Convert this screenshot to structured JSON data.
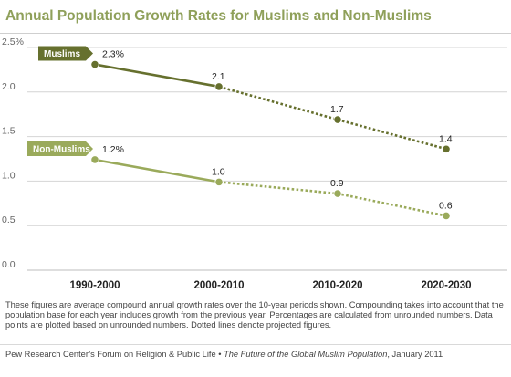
{
  "title": "Annual Population Growth Rates for Muslims and Non-Muslims",
  "colors": {
    "muslims": "#66702e",
    "non_muslims": "#9aaa5b",
    "title": "#8fa05a",
    "grid": "#d4d4d4"
  },
  "chart_data": {
    "type": "line",
    "categories": [
      "1990-2000",
      "2000-2010",
      "2010-2020",
      "2020-2030"
    ],
    "ylim": [
      0,
      2.5
    ],
    "yticks": [
      "0.0",
      "0.5",
      "1.0",
      "1.5",
      "2.0",
      "2.5%"
    ],
    "ytick_values": [
      0,
      0.5,
      1.0,
      1.5,
      2.0,
      2.5
    ],
    "grid": true,
    "projected_from_index": 1,
    "series": [
      {
        "name": "Muslims",
        "values": [
          2.31,
          2.06,
          1.69,
          1.36
        ],
        "labels": [
          "2.3%",
          "2.1",
          "1.7",
          "1.4"
        ],
        "color": "#66702e"
      },
      {
        "name": "Non-Muslims",
        "values": [
          1.24,
          0.99,
          0.86,
          0.61
        ],
        "labels": [
          "1.2%",
          "1.0",
          "0.9",
          "0.6"
        ],
        "color": "#9aaa5b"
      }
    ]
  },
  "footnote": "These figures are average compound annual growth rates over the 10-year periods shown. Compounding takes into account that the population base for each year includes growth from the previous year. Percentages are calculated from unrounded numbers. Data points are plotted based on unrounded numbers. Dotted lines denote projected figures.",
  "source": {
    "prefix": "Pew Research Center’s Forum on Religion & Public Life • ",
    "publication": "The Future of the Global Muslim Population",
    "suffix": ", January 2011"
  }
}
